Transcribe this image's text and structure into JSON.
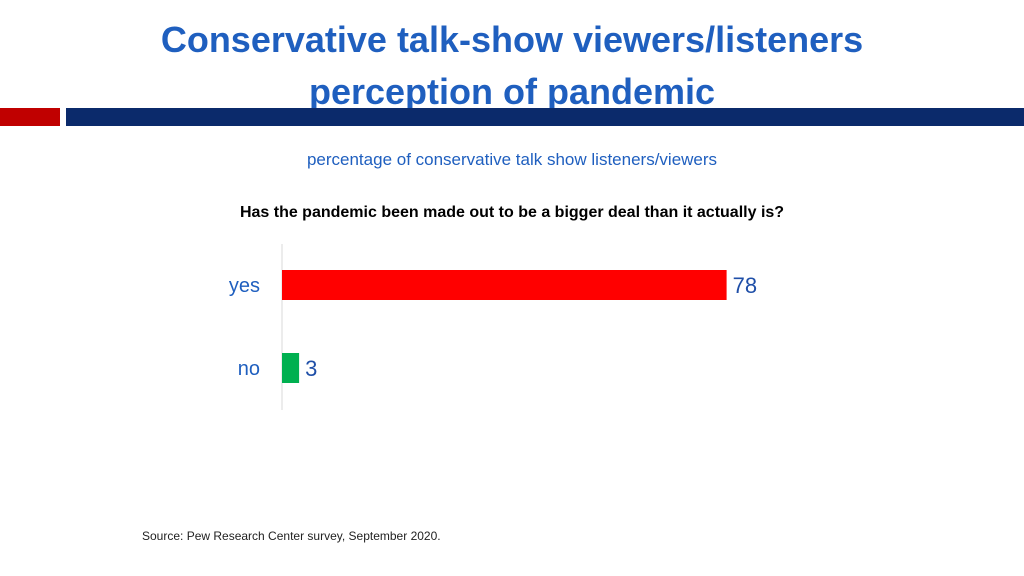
{
  "title_line1": "Conservative talk-show viewers/listeners",
  "title_line2": "perception of pandemic",
  "source": "Source: Pew Research Center survey, September 2020.",
  "colors": {
    "title": "#1f5fbf",
    "rule_red": "#c00000",
    "rule_navy": "#0b2a6b"
  },
  "chart_data": {
    "type": "bar",
    "orientation": "horizontal",
    "subtitle": "percentage of conservative talk show listeners/viewers",
    "title": "Has the pandemic been made out to be a bigger deal than it actually is?",
    "categories": [
      "yes",
      "no"
    ],
    "values": [
      78,
      3
    ],
    "colors": [
      "#ff0000",
      "#00b050"
    ],
    "xlim": [
      0,
      100
    ],
    "data_labels": true,
    "grid": false
  }
}
